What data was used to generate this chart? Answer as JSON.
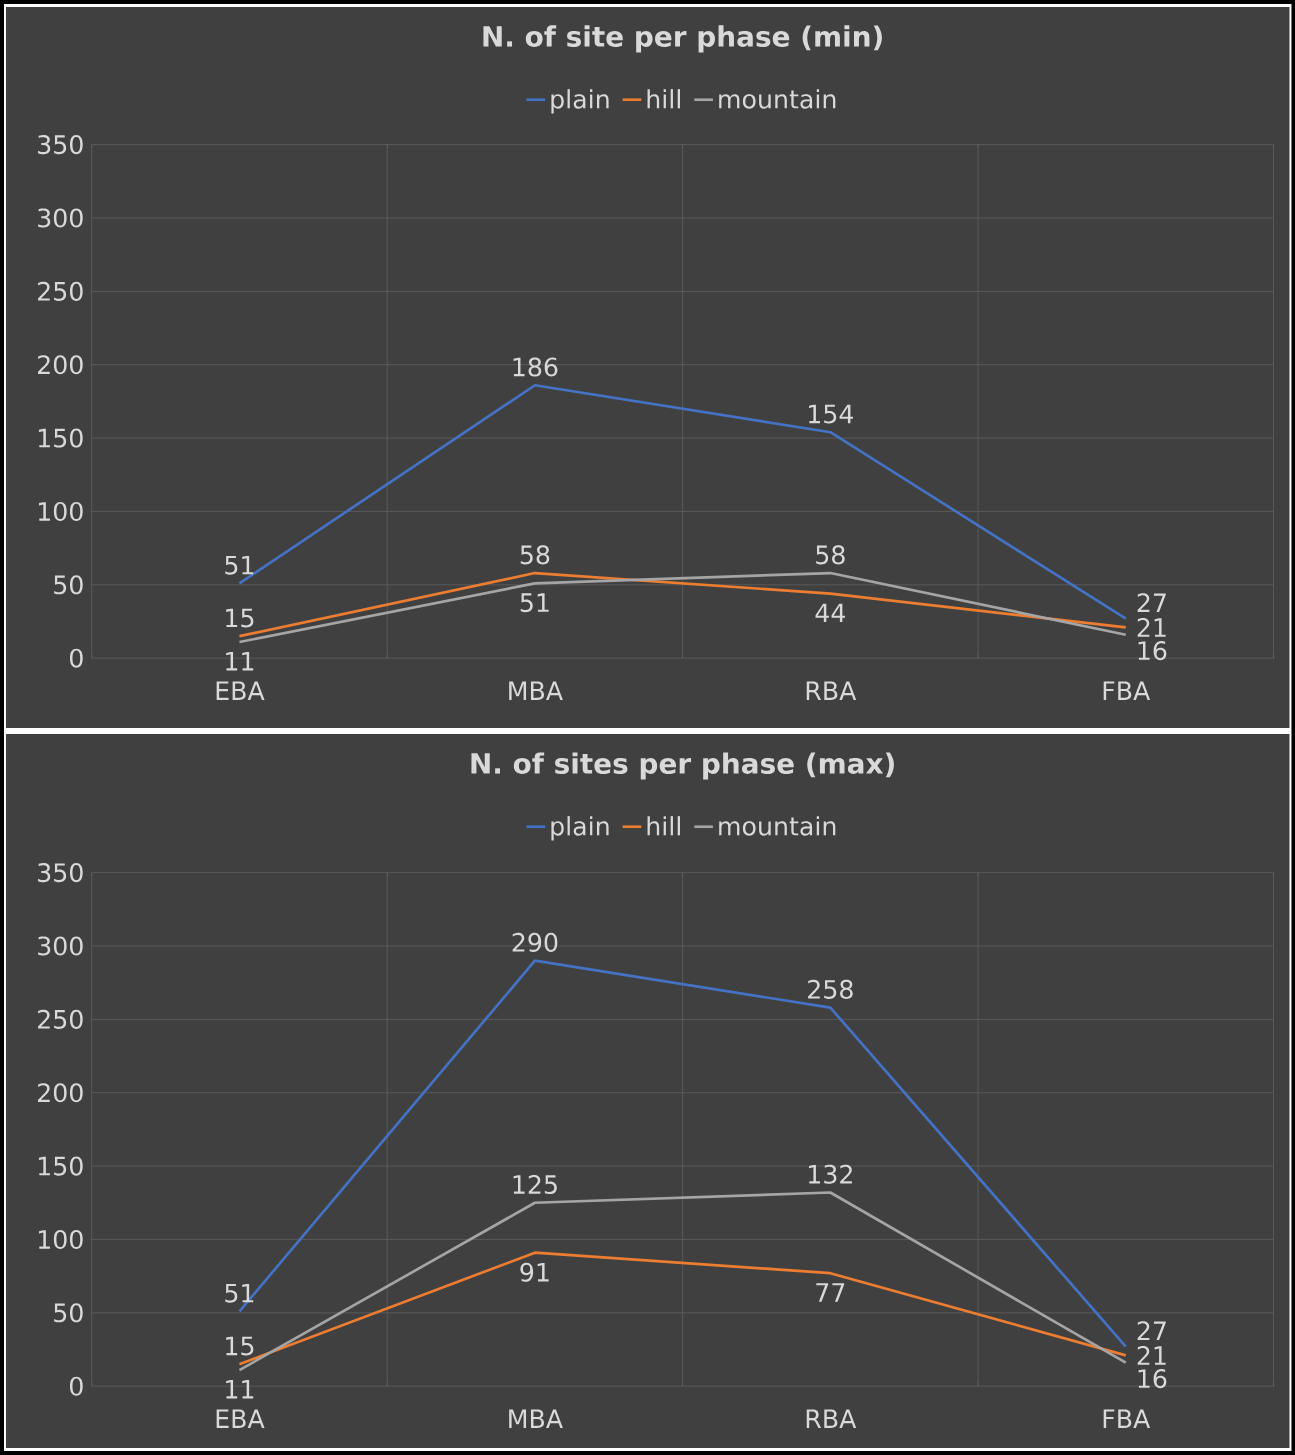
{
  "chart_data": [
    {
      "type": "line",
      "title": "N. of site per phase (min)",
      "categories": [
        "EBA",
        "MBA",
        "RBA",
        "FBA"
      ],
      "series": [
        {
          "name": "plain",
          "color": "#4472c4",
          "values": [
            51,
            186,
            154,
            27
          ]
        },
        {
          "name": "hill",
          "color": "#ed7d31",
          "values": [
            15,
            58,
            44,
            21
          ]
        },
        {
          "name": "mountain",
          "color": "#a5a5a5",
          "values": [
            11,
            51,
            58,
            16
          ]
        }
      ],
      "ylim": [
        0,
        350
      ],
      "yticks": [
        0,
        50,
        100,
        150,
        200,
        250,
        300,
        350
      ],
      "grid": true,
      "legend": "top",
      "data_labels": true,
      "marker": "none",
      "line_style": "solid"
    },
    {
      "type": "line",
      "title": "N. of sites per phase (max)",
      "categories": [
        "EBA",
        "MBA",
        "RBA",
        "FBA"
      ],
      "series": [
        {
          "name": "plain",
          "color": "#4472c4",
          "values": [
            51,
            290,
            258,
            27
          ]
        },
        {
          "name": "hill",
          "color": "#ed7d31",
          "values": [
            15,
            91,
            77,
            21
          ]
        },
        {
          "name": "mountain",
          "color": "#a5a5a5",
          "values": [
            11,
            125,
            132,
            16
          ]
        }
      ],
      "ylim": [
        0,
        350
      ],
      "yticks": [
        0,
        50,
        100,
        150,
        200,
        250,
        300,
        350
      ],
      "grid": true,
      "legend": "top",
      "data_labels": true,
      "marker": "none",
      "line_style": "solid"
    }
  ]
}
